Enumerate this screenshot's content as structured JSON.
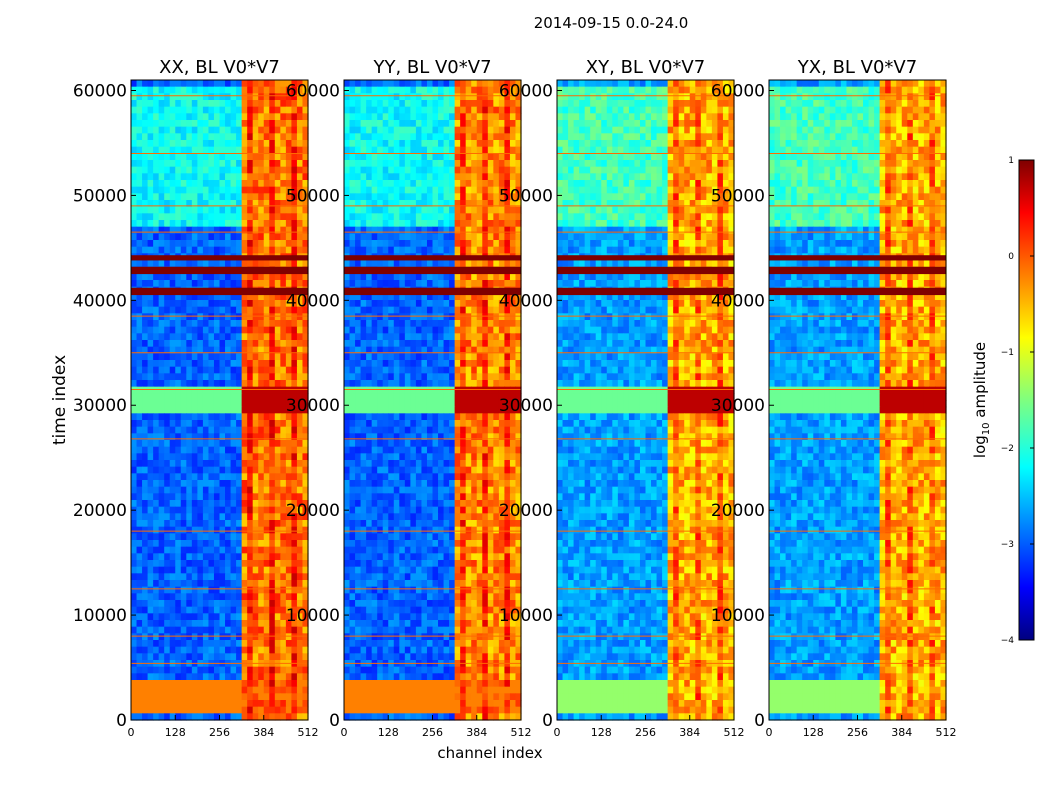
{
  "chart_data": {
    "type": "heatmap",
    "suptitle": "2014-09-15 0.0-24.0",
    "xlabel": "channel index",
    "ylabel": "time index",
    "xlim": [
      0,
      512
    ],
    "ylim": [
      0,
      61000
    ],
    "xticks": [
      0,
      128,
      256,
      384,
      512
    ],
    "yticks": [
      0,
      10000,
      20000,
      30000,
      40000,
      50000,
      60000
    ],
    "colorbar": {
      "label_main": "log",
      "label_sub": "10",
      "label_rest": " amplitude",
      "range": [
        -4,
        1
      ],
      "ticks": [
        1,
        0,
        -1,
        -2,
        -3,
        -4
      ],
      "tick_labels": [
        "1",
        "0",
        "−1",
        "−2",
        "−3",
        "−4"
      ],
      "colormap": "jet"
    },
    "panels": [
      {
        "title": "XX, BL V0*V7",
        "pol": "XX",
        "noise_level": -2.9,
        "band_level": -0.2
      },
      {
        "title": "YY, BL V0*V7",
        "pol": "YY",
        "noise_level": -2.9,
        "band_level": -0.3
      },
      {
        "title": "XY, BL V0*V7",
        "pol": "XY",
        "noise_level": -2.6,
        "band_level": -0.5
      },
      {
        "title": "YX, BL V0*V7",
        "pol": "YX",
        "noise_level": -2.6,
        "band_level": -0.5
      }
    ],
    "features": {
      "rfi_band_channels": [
        320,
        512
      ],
      "saturated_rows_time": [
        [
          40500,
          41200
        ],
        [
          42500,
          43200
        ],
        [
          43800,
          44300
        ]
      ],
      "early_bright_block_time": [
        500,
        4000
      ],
      "broadband_event_time": 30500
    }
  }
}
